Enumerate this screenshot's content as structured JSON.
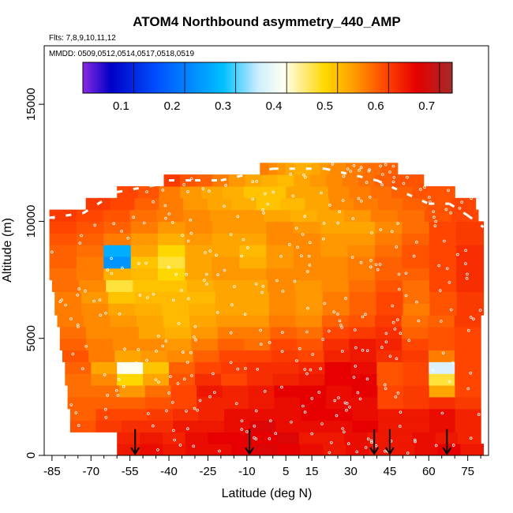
{
  "chart_data": {
    "type": "heatmap",
    "title": "ATOM4 Northbound asymmetry_440_AMP",
    "flights_note": "Flts: 7,8,9,10,11,12",
    "dates_note": "MMDD: 0509,0512,0514,0517,0518,0519",
    "xlabel": "Latitude (deg N)",
    "ylabel": "Altitude (m)",
    "xlim": [
      -88,
      83
    ],
    "ylim": [
      0,
      17500
    ],
    "x_tick_values": [
      -85,
      -70,
      -55,
      -40,
      -25,
      -10,
      5,
      15,
      30,
      45,
      60,
      75
    ],
    "x_tick_labels": [
      "-85",
      "-70",
      "-55",
      "-40",
      "-25",
      "-10",
      "5",
      "15",
      "30",
      "45",
      "60",
      "75"
    ],
    "y_tick_values": [
      0,
      5000,
      10000,
      15000
    ],
    "y_tick_labels": [
      "0",
      "5000",
      "10000",
      "15000"
    ],
    "colorbar": {
      "range": [
        0.025,
        0.75
      ],
      "tick_values": [
        0.1,
        0.2,
        0.3,
        0.4,
        0.5,
        0.6,
        0.7
      ],
      "tick_labels": [
        "0.1",
        "0.2",
        "0.3",
        "0.4",
        "0.5",
        "0.6",
        "0.7"
      ],
      "divisions": [
        0.125,
        0.225,
        0.325,
        0.425,
        0.525,
        0.625,
        0.725
      ],
      "stops": [
        {
          "v": 0.025,
          "c": "#8a2be2"
        },
        {
          "v": 0.08,
          "c": "#0000c8"
        },
        {
          "v": 0.17,
          "c": "#0050ff"
        },
        {
          "v": 0.3,
          "c": "#00bfff"
        },
        {
          "v": 0.37,
          "c": "#cfeeff"
        },
        {
          "v": 0.42,
          "c": "#fffff0"
        },
        {
          "v": 0.5,
          "c": "#ffd700"
        },
        {
          "v": 0.55,
          "c": "#ffa500"
        },
        {
          "v": 0.62,
          "c": "#ff4500"
        },
        {
          "v": 0.68,
          "c": "#e60000"
        },
        {
          "v": 0.75,
          "c": "#a52a2a"
        }
      ]
    },
    "profile_arrows_lat": [
      -53,
      -9,
      39,
      45,
      67
    ],
    "domain_envelope": [
      {
        "lat": -86,
        "alt_top": 10400
      },
      {
        "lat": -73,
        "alt_top": 10600
      },
      {
        "lat": -60,
        "alt_top": 11500
      },
      {
        "lat": -45,
        "alt_top": 11800
      },
      {
        "lat": -40,
        "alt_top": 12000
      },
      {
        "lat": -30,
        "alt_top": 12000
      },
      {
        "lat": -20,
        "alt_top": 12000
      },
      {
        "lat": 0,
        "alt_top": 12500
      },
      {
        "lat": 20,
        "alt_top": 12500
      },
      {
        "lat": 40,
        "alt_top": 12000
      },
      {
        "lat": 60,
        "alt_top": 11000
      },
      {
        "lat": 68,
        "alt_top": 11000
      },
      {
        "lat": 75,
        "alt_top": 10500
      },
      {
        "lat": 81,
        "alt_top": 10000
      }
    ],
    "rows": [
      {
        "alt": 250,
        "lat_min": -60,
        "lat_max": 81,
        "values": [
          0.66,
          0.67,
          0.66,
          0.67,
          0.67,
          0.68,
          0.69,
          0.68,
          0.67,
          0.66,
          0.67,
          0.66,
          0.66,
          0.67,
          0.68,
          0.66
        ]
      },
      {
        "alt": 750,
        "lat_min": -60,
        "lat_max": 80,
        "values": [
          0.65,
          0.66,
          0.65,
          0.67,
          0.68,
          0.68,
          0.68,
          0.69,
          0.66,
          0.66,
          0.67,
          0.66,
          0.66,
          0.67,
          0.66,
          0.65
        ]
      },
      {
        "alt": 1250,
        "lat_min": -78,
        "lat_max": 80,
        "values": [
          0.61,
          0.63,
          0.64,
          0.64,
          0.66,
          0.66,
          0.67,
          0.69,
          0.67,
          0.67,
          0.67,
          0.68,
          0.66,
          0.66,
          0.67,
          0.65
        ]
      },
      {
        "alt": 1750,
        "lat_min": -78,
        "lat_max": 80,
        "values": [
          0.6,
          0.62,
          0.62,
          0.63,
          0.64,
          0.65,
          0.67,
          0.67,
          0.67,
          0.68,
          0.68,
          0.67,
          0.66,
          0.66,
          0.67,
          0.65
        ]
      },
      {
        "alt": 2250,
        "lat_min": -79,
        "lat_max": 80,
        "values": [
          0.6,
          0.6,
          0.6,
          0.61,
          0.62,
          0.65,
          0.65,
          0.66,
          0.67,
          0.68,
          0.67,
          0.67,
          0.62,
          0.63,
          0.64,
          0.63
        ]
      },
      {
        "alt": 2750,
        "lat_min": -79,
        "lat_max": 80,
        "values": [
          0.59,
          0.59,
          0.56,
          0.59,
          0.62,
          0.66,
          0.65,
          0.66,
          0.68,
          0.68,
          0.67,
          0.68,
          0.62,
          0.63,
          0.55,
          0.62
        ]
      },
      {
        "alt": 3250,
        "lat_min": -80,
        "lat_max": 80,
        "values": [
          0.59,
          0.57,
          0.5,
          0.55,
          0.61,
          0.64,
          0.62,
          0.64,
          0.65,
          0.66,
          0.68,
          0.68,
          0.61,
          0.62,
          0.48,
          0.62
        ]
      },
      {
        "alt": 3750,
        "lat_min": -80,
        "lat_max": 80,
        "values": [
          0.6,
          0.55,
          0.42,
          0.52,
          0.6,
          0.62,
          0.63,
          0.64,
          0.64,
          0.65,
          0.68,
          0.67,
          0.61,
          0.62,
          0.38,
          0.62
        ]
      },
      {
        "alt": 4250,
        "lat_min": -81,
        "lat_max": 80,
        "values": [
          0.61,
          0.58,
          0.55,
          0.56,
          0.57,
          0.6,
          0.62,
          0.62,
          0.63,
          0.62,
          0.65,
          0.66,
          0.64,
          0.63,
          0.58,
          0.62
        ]
      },
      {
        "alt": 4750,
        "lat_min": -82,
        "lat_max": 80,
        "values": [
          0.6,
          0.58,
          0.57,
          0.57,
          0.56,
          0.58,
          0.6,
          0.59,
          0.62,
          0.61,
          0.64,
          0.66,
          0.65,
          0.62,
          0.61,
          0.62
        ]
      },
      {
        "alt": 5250,
        "lat_min": -82,
        "lat_max": 80,
        "values": [
          0.59,
          0.57,
          0.57,
          0.55,
          0.54,
          0.56,
          0.58,
          0.58,
          0.6,
          0.59,
          0.62,
          0.63,
          0.64,
          0.6,
          0.61,
          0.62
        ]
      },
      {
        "alt": 5750,
        "lat_min": -83,
        "lat_max": 80,
        "values": [
          0.58,
          0.57,
          0.56,
          0.55,
          0.53,
          0.55,
          0.56,
          0.56,
          0.58,
          0.57,
          0.6,
          0.61,
          0.63,
          0.59,
          0.6,
          0.63
        ]
      },
      {
        "alt": 6250,
        "lat_min": -84,
        "lat_max": 81,
        "values": [
          0.58,
          0.57,
          0.55,
          0.54,
          0.53,
          0.54,
          0.55,
          0.55,
          0.57,
          0.56,
          0.58,
          0.6,
          0.62,
          0.58,
          0.61,
          0.63
        ]
      },
      {
        "alt": 6750,
        "lat_min": -84,
        "lat_max": 81,
        "values": [
          0.58,
          0.56,
          0.52,
          0.53,
          0.53,
          0.53,
          0.55,
          0.55,
          0.57,
          0.56,
          0.58,
          0.6,
          0.62,
          0.59,
          0.61,
          0.63
        ]
      },
      {
        "alt": 7250,
        "lat_min": -85,
        "lat_max": 81,
        "values": [
          0.59,
          0.57,
          0.48,
          0.52,
          0.52,
          0.54,
          0.55,
          0.55,
          0.57,
          0.56,
          0.57,
          0.59,
          0.61,
          0.59,
          0.62,
          0.64
        ]
      },
      {
        "alt": 7750,
        "lat_min": -86,
        "lat_max": 81,
        "values": [
          0.59,
          0.58,
          0.54,
          0.53,
          0.5,
          0.55,
          0.56,
          0.56,
          0.57,
          0.57,
          0.57,
          0.58,
          0.6,
          0.6,
          0.62,
          0.64
        ]
      },
      {
        "alt": 8250,
        "lat_min": -86,
        "lat_max": 81,
        "values": [
          0.6,
          0.58,
          0.25,
          0.52,
          0.48,
          0.55,
          0.56,
          0.54,
          0.56,
          0.57,
          0.57,
          0.58,
          0.6,
          0.61,
          0.62,
          0.64
        ]
      },
      {
        "alt": 8750,
        "lat_min": -86,
        "lat_max": 81,
        "values": [
          0.6,
          0.59,
          0.28,
          0.55,
          0.5,
          0.55,
          0.55,
          0.53,
          0.56,
          0.57,
          0.56,
          0.57,
          0.59,
          0.61,
          0.62,
          0.64
        ]
      },
      {
        "alt": 9250,
        "lat_min": -86,
        "lat_max": 81,
        "values": [
          0.61,
          0.6,
          0.58,
          0.56,
          0.54,
          0.56,
          0.55,
          0.55,
          0.57,
          0.57,
          0.56,
          0.56,
          0.58,
          0.6,
          0.62,
          0.63
        ]
      },
      {
        "alt": 9750,
        "lat_min": -86,
        "lat_max": 81,
        "values": [
          0.62,
          0.61,
          0.6,
          0.58,
          0.56,
          0.57,
          0.56,
          0.56,
          0.57,
          0.56,
          0.55,
          0.55,
          0.57,
          0.59,
          0.62,
          0.63
        ]
      },
      {
        "alt": 10250,
        "lat_min": -86,
        "lat_max": 79,
        "values": [
          0.63,
          0.62,
          0.61,
          0.59,
          0.58,
          0.57,
          0.56,
          0.56,
          0.55,
          0.54,
          0.55,
          0.56,
          0.58,
          0.59,
          0.61,
          0.62
        ]
      },
      {
        "alt": 10750,
        "lat_min": -72,
        "lat_max": 78,
        "values": [
          0.63,
          0.62,
          0.6,
          0.58,
          0.56,
          0.55,
          0.54,
          0.52,
          0.53,
          0.55,
          0.57,
          0.58,
          0.59,
          0.6,
          0.61,
          0.62
        ]
      },
      {
        "alt": 11250,
        "lat_min": -60,
        "lat_max": 70,
        "values": [
          0.62,
          0.61,
          0.58,
          0.56,
          0.55,
          0.54,
          0.52,
          0.52,
          0.55,
          0.55,
          0.57,
          0.58,
          0.59,
          0.6,
          0.61,
          0.61
        ]
      },
      {
        "alt": 11750,
        "lat_min": -42,
        "lat_max": 58,
        "values": [
          0.63,
          0.61,
          0.6,
          0.58,
          0.56,
          0.55,
          0.54,
          0.53,
          0.55,
          0.56,
          0.57,
          0.58,
          0.59,
          0.6,
          0.61,
          0.61
        ]
      },
      {
        "alt": 12250,
        "lat_min": -5,
        "lat_max": 48,
        "values": [
          0.58,
          0.57,
          0.56,
          0.55,
          0.54,
          0.54,
          0.55,
          0.56,
          0.57,
          0.57,
          0.58,
          0.58,
          0.59,
          0.59,
          0.6,
          0.6
        ]
      }
    ]
  }
}
